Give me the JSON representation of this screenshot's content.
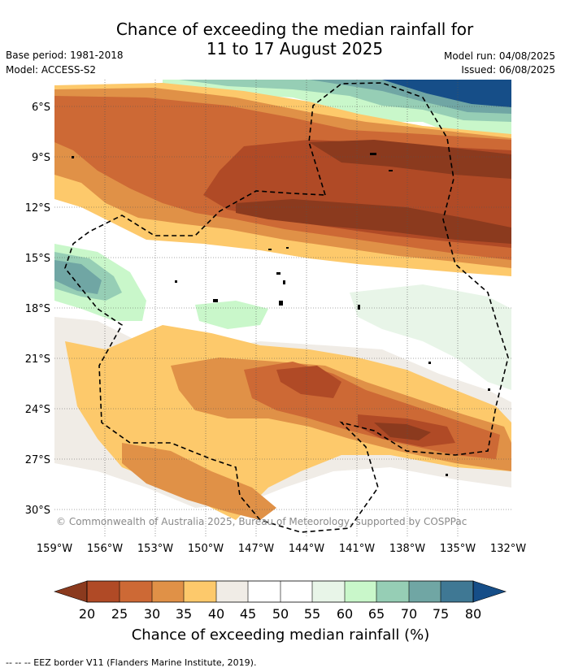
{
  "title": {
    "line1": "Chance of exceeding the median rainfall for",
    "line2": "11 to 17 August 2025"
  },
  "meta": {
    "base_period": "Base period: 1981-2018",
    "model": "Model: ACCESS-S2",
    "model_run": "Model run: 04/08/2025",
    "issued": "Issued: 06/08/2025"
  },
  "map": {
    "lat_labels": [
      "6°S",
      "9°S",
      "12°S",
      "15°S",
      "18°S",
      "21°S",
      "24°S",
      "27°S",
      "30°S"
    ],
    "lon_labels": [
      "159°W",
      "156°W",
      "153°W",
      "150°W",
      "147°W",
      "144°W",
      "141°W",
      "138°W",
      "135°W",
      "132°W"
    ],
    "copyright": "© Commonwealth of Australia 2025, Bureau of Meteorology, supported by COSPPac"
  },
  "colorbar": {
    "ticks": [
      "20",
      "25",
      "30",
      "35",
      "40",
      "45",
      "50",
      "55",
      "60",
      "65",
      "70",
      "75",
      "80"
    ],
    "title": "Chance of exceeding median rainfall (%)",
    "colors": {
      "below20": "#8b3a1e",
      "c20_25": "#b04a26",
      "c25_30": "#cd6935",
      "c30_35": "#e09147",
      "c35_40": "#fdc96b",
      "c40_45": "#f0ece6",
      "c45_55": "#ffffff",
      "c55_60": "#e8f5e8",
      "c60_65": "#c9f7ca",
      "c65_70": "#96ceb5",
      "c70_75": "#70a6a4",
      "c75_80": "#3f7894",
      "above80": "#164e88"
    }
  },
  "footer": "-- -- -- EEZ border V11 (Flanders Marine Institute, 2019)."
}
